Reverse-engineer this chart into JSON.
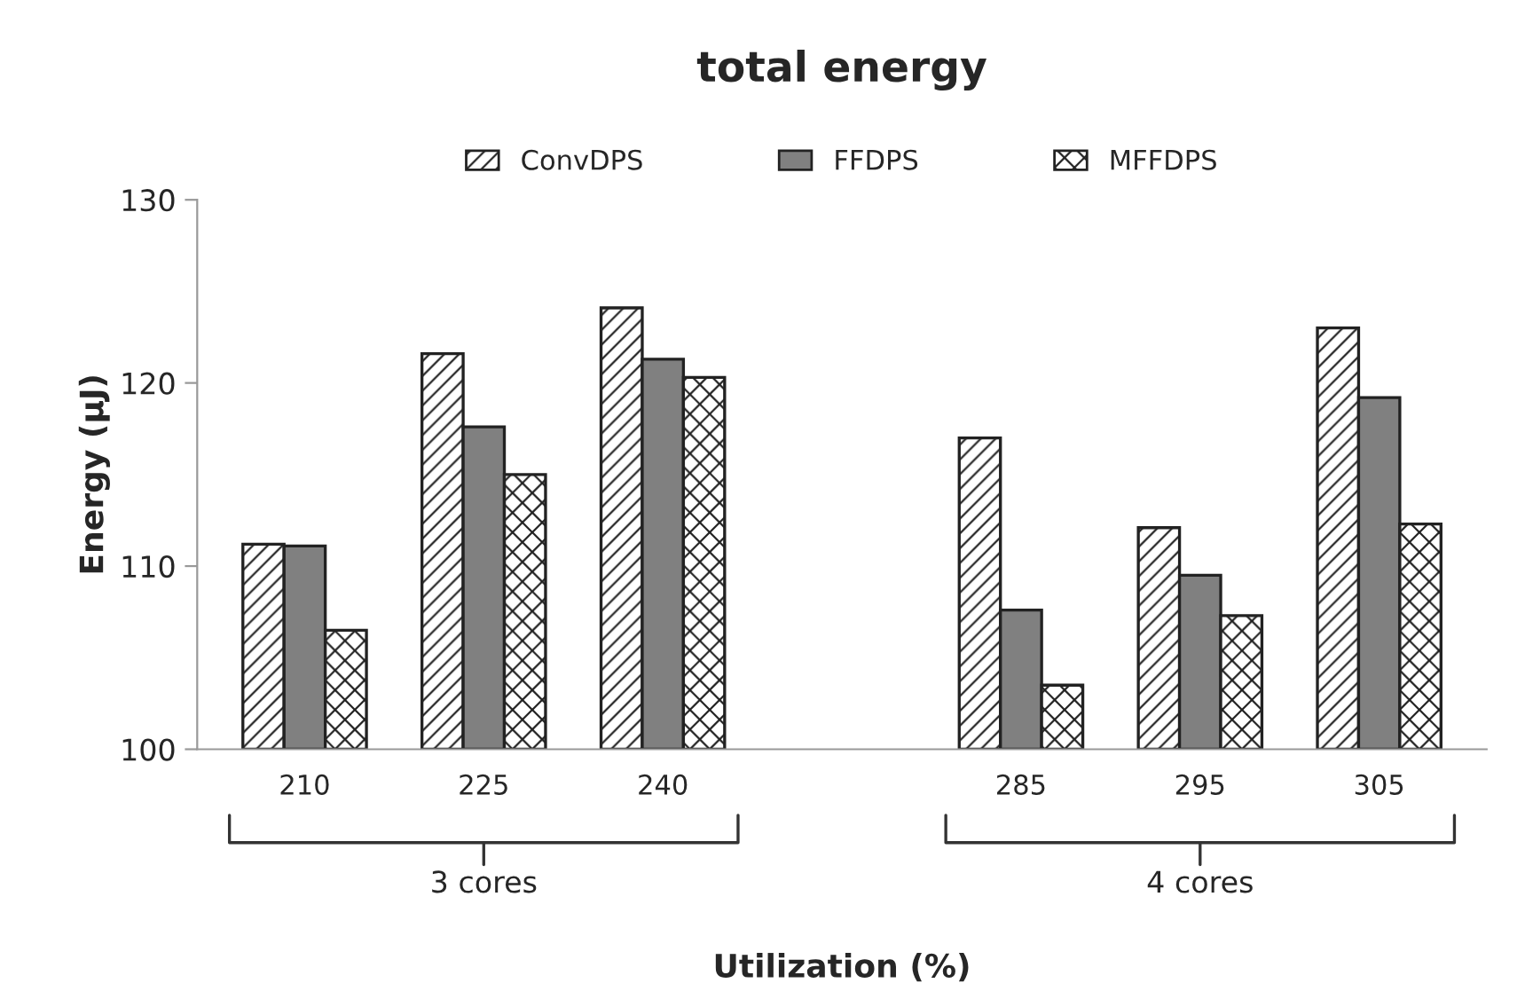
{
  "chart_data": {
    "type": "bar",
    "title": "total energy",
    "xlabel": "Utilization (%)",
    "ylabel": "Energy (µJ)",
    "categories": [
      "210",
      "225",
      "240",
      null,
      "285",
      "295",
      "305"
    ],
    "series": [
      {
        "name": "ConvDPS",
        "color": "#222222",
        "values": [
          111.2,
          121.6,
          124.1,
          null,
          117.0,
          112.1,
          123.0
        ]
      },
      {
        "name": "FFDPS",
        "color": "#808080",
        "values": [
          111.1,
          117.6,
          121.3,
          null,
          107.6,
          109.5,
          119.2
        ]
      },
      {
        "name": "MFFDPS",
        "color": "#222222",
        "values": [
          106.5,
          115.0,
          120.3,
          null,
          103.5,
          107.3,
          112.3
        ]
      }
    ],
    "ylim": [
      100,
      130
    ],
    "yticks": [
      100,
      110,
      120,
      130
    ],
    "grid": false,
    "legend": "top",
    "annotations": [
      "3 cores",
      "4 cores"
    ]
  }
}
